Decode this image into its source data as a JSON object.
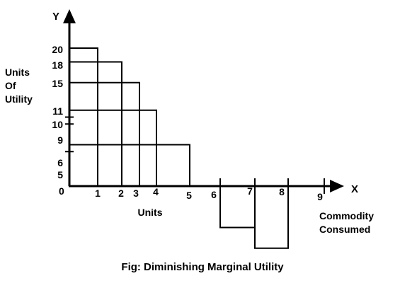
{
  "chart_data": {
    "type": "bar",
    "title": "Fig: Diminishing Marginal Utility",
    "xlabel": "Units",
    "ylabel_lines": [
      "Units",
      "Of",
      "Utility"
    ],
    "x_axis_letter": "X",
    "y_axis_letter": "Y",
    "x_axis_caption_lines": [
      "Commodity",
      "Consumed"
    ],
    "origin_label": "0",
    "x_tick_labels": [
      "1",
      "2",
      "3",
      "4",
      "5",
      "6",
      "7",
      "8",
      "9"
    ],
    "y_tick_labels": [
      "5",
      "6",
      "9",
      "10",
      "11",
      "15",
      "18",
      "20"
    ],
    "categories": [
      1,
      2,
      3,
      4,
      5
    ],
    "values": [
      20,
      18,
      15,
      11,
      6
    ],
    "negative_bars": [
      {
        "x_start": 6,
        "x_end": 7,
        "value": -6
      },
      {
        "x_start": 7,
        "x_end": 8,
        "value": -9
      }
    ],
    "grid": false
  }
}
